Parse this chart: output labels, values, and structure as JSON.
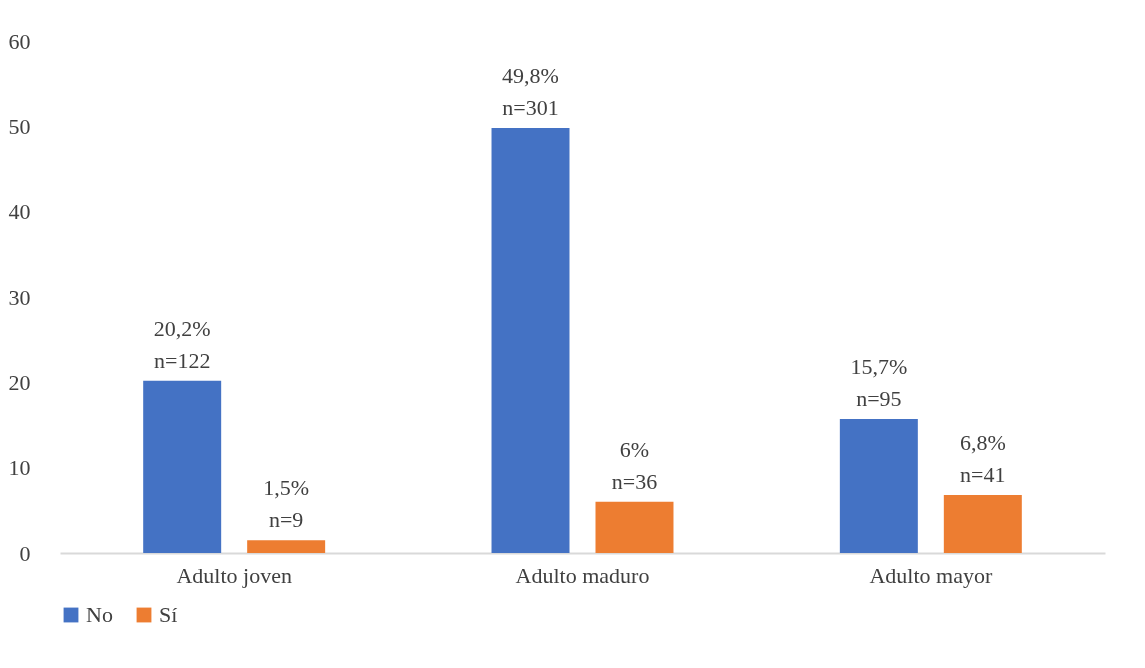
{
  "chart_data": {
    "type": "bar",
    "categories": [
      "Adulto joven",
      "Adulto maduro",
      "Adulto mayor"
    ],
    "series": [
      {
        "name": "No",
        "color": "#4472c4",
        "values": [
          20.2,
          49.8,
          15.7
        ],
        "value_labels": [
          "20,2%\nn=122",
          "49,8%\nn=301",
          "15,7%\nn=95"
        ]
      },
      {
        "name": "Sí",
        "color": "#ed7d31",
        "values": [
          1.5,
          6,
          6.8
        ],
        "value_labels": [
          "1,5%\nn=9",
          "6%\nn=36",
          "6,8%\nn=41"
        ]
      }
    ],
    "ylim": [
      0,
      60
    ],
    "yticks": [
      0,
      10,
      20,
      30,
      40,
      50,
      60
    ],
    "grid": false,
    "legend": "bottom"
  }
}
